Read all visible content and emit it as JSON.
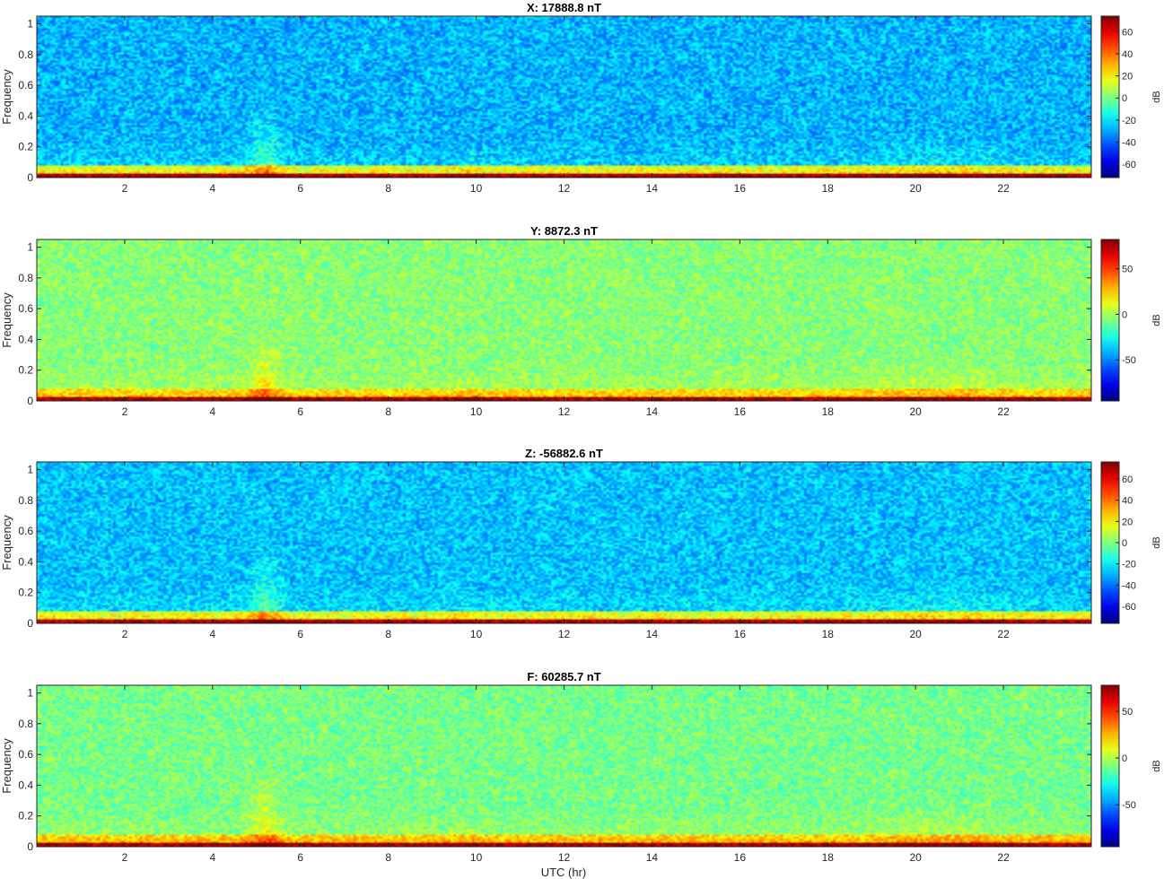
{
  "figure": {
    "xlabel": "UTC (hr)"
  },
  "chart_data": [
    {
      "type": "heatmap",
      "title": "X: 17888.8 nT",
      "ylabel": "Frequency",
      "xlim": [
        0,
        24
      ],
      "ylim": [
        0,
        1.05
      ],
      "xticks": [
        2,
        4,
        6,
        8,
        10,
        12,
        14,
        16,
        18,
        20,
        22
      ],
      "yticks": [
        0,
        0.2,
        0.4,
        0.6,
        0.8,
        1
      ],
      "colorbar": {
        "label": "dB",
        "min": -72,
        "max": 74,
        "ticks": [
          -60,
          -40,
          -20,
          0,
          20,
          40,
          60
        ]
      },
      "colormap": "jet",
      "background_db": -28,
      "low_freq_band_db": 25,
      "dc_line_db": 70
    },
    {
      "type": "heatmap",
      "title": "Y: 8872.3 nT",
      "ylabel": "Frequency",
      "xlim": [
        0,
        24
      ],
      "ylim": [
        0,
        1.05
      ],
      "xticks": [
        2,
        4,
        6,
        8,
        10,
        12,
        14,
        16,
        18,
        20,
        22
      ],
      "yticks": [
        0,
        0.2,
        0.4,
        0.6,
        0.8,
        1
      ],
      "colorbar": {
        "label": "dB",
        "min": -95,
        "max": 82,
        "ticks": [
          -50,
          0,
          50
        ]
      },
      "colormap": "jet",
      "background_db": -5,
      "low_freq_band_db": 30,
      "dc_line_db": 75
    },
    {
      "type": "heatmap",
      "title": "Z: -56882.6 nT",
      "ylabel": "Frequency",
      "xlim": [
        0,
        24
      ],
      "ylim": [
        0,
        1.05
      ],
      "xticks": [
        2,
        4,
        6,
        8,
        10,
        12,
        14,
        16,
        18,
        20,
        22
      ],
      "yticks": [
        0,
        0.2,
        0.4,
        0.6,
        0.8,
        1
      ],
      "colorbar": {
        "label": "dB",
        "min": -76,
        "max": 76,
        "ticks": [
          -60,
          -40,
          -20,
          0,
          20,
          40,
          60
        ]
      },
      "colormap": "jet",
      "background_db": -28,
      "low_freq_band_db": 25,
      "dc_line_db": 70
    },
    {
      "type": "heatmap",
      "title": "F: 60285.7 nT",
      "ylabel": "Frequency",
      "xlabel": "UTC (hr)",
      "xlim": [
        0,
        24
      ],
      "ylim": [
        0,
        1.05
      ],
      "xticks": [
        2,
        4,
        6,
        8,
        10,
        12,
        14,
        16,
        18,
        20,
        22
      ],
      "yticks": [
        0,
        0.2,
        0.4,
        0.6,
        0.8,
        1
      ],
      "colorbar": {
        "label": "dB",
        "min": -95,
        "max": 78,
        "ticks": [
          -50,
          0,
          50
        ]
      },
      "colormap": "jet",
      "background_db": -10,
      "low_freq_band_db": 30,
      "dc_line_db": 72
    }
  ]
}
